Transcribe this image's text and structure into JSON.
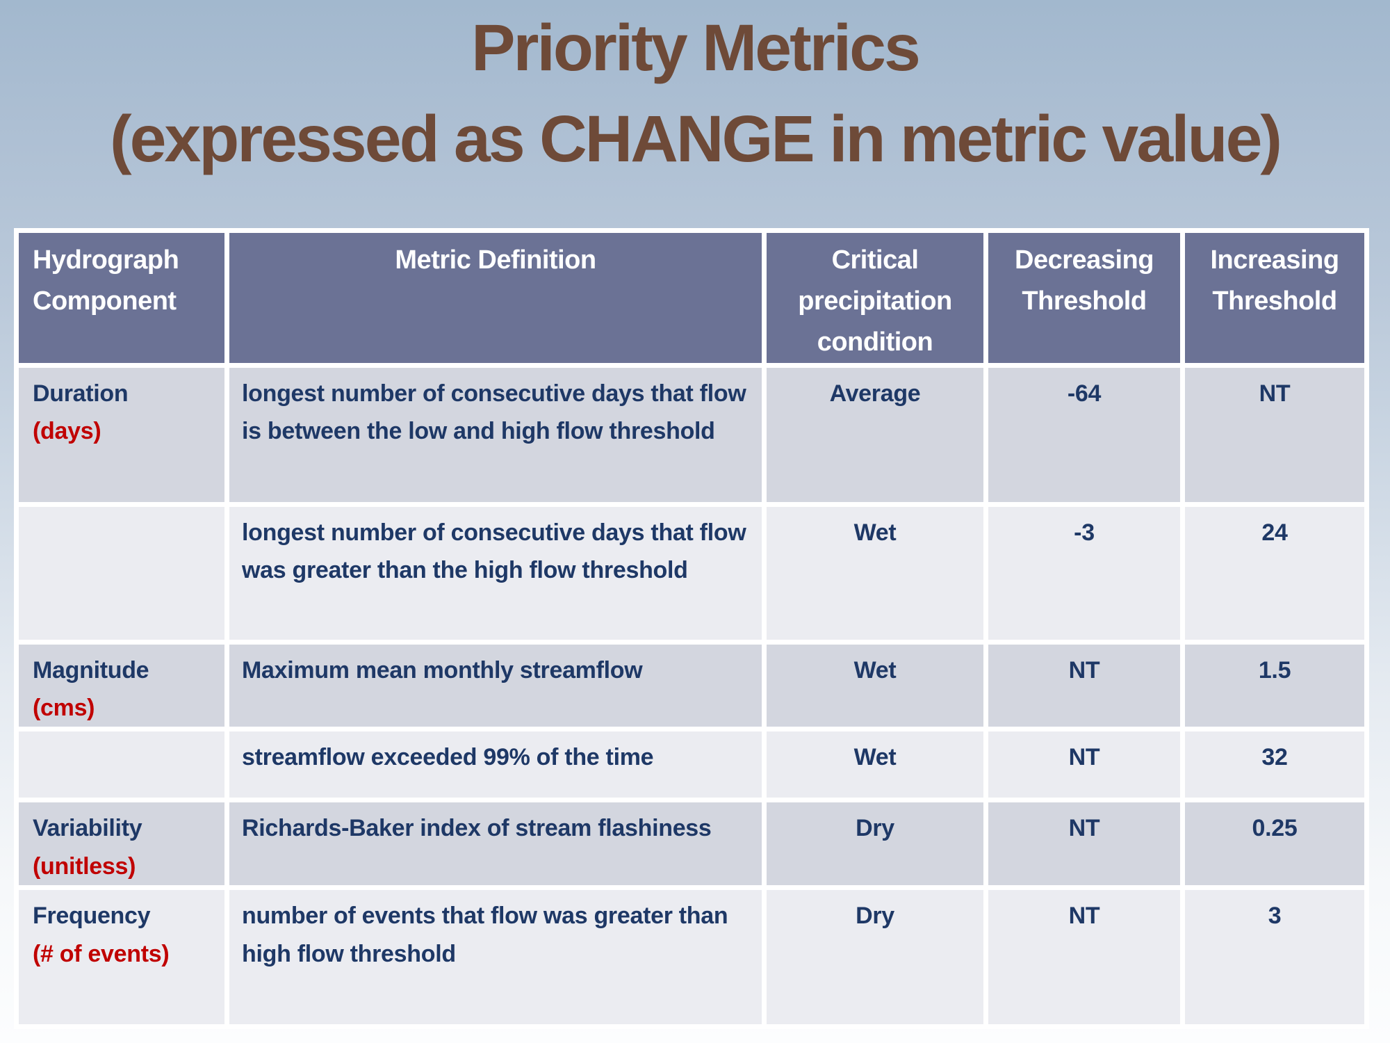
{
  "slide": {
    "title_line1": "Priority Metrics",
    "title_line2": "(expressed as CHANGE in metric value)"
  },
  "colors": {
    "title_brown": "#6e4a38",
    "header_fill": "#6b7295",
    "row_band_dark": "#d3d6df",
    "row_band_light": "#ebecf1",
    "body_navy": "#1e3866",
    "unit_red": "#c00000",
    "grid_white": "#ffffff"
  },
  "table": {
    "headers": [
      "Hydrograph Component",
      "Metric Definition",
      "Critical precipitation condition",
      "Decreasing Threshold",
      "Increasing Threshold"
    ],
    "rows": [
      {
        "component": "Duration",
        "unit": "(days)",
        "definition": "longest number of consecutive days that flow is between the low and high flow threshold",
        "condition": "Average",
        "decreasing": "-64",
        "increasing": "NT"
      },
      {
        "component": "",
        "unit": "",
        "definition": "longest number of consecutive days that flow was greater than the high flow threshold",
        "condition": "Wet",
        "decreasing": "-3",
        "increasing": "24"
      },
      {
        "component": "Magnitude",
        "unit": "(cms)",
        "definition": "Maximum mean monthly streamflow",
        "condition": "Wet",
        "decreasing": "NT",
        "increasing": "1.5"
      },
      {
        "component": "",
        "unit": "",
        "definition": "streamflow exceeded 99% of the time",
        "condition": "Wet",
        "decreasing": "NT",
        "increasing": "32"
      },
      {
        "component": "Variability",
        "unit": "(unitless)",
        "definition": "Richards-Baker index of stream flashiness",
        "condition": "Dry",
        "decreasing": "NT",
        "increasing": "0.25"
      },
      {
        "component": "Frequency",
        "unit": "(# of events)",
        "definition": "number of events that flow was greater than high flow threshold",
        "condition": "Dry",
        "decreasing": "NT",
        "increasing": "3"
      }
    ]
  }
}
